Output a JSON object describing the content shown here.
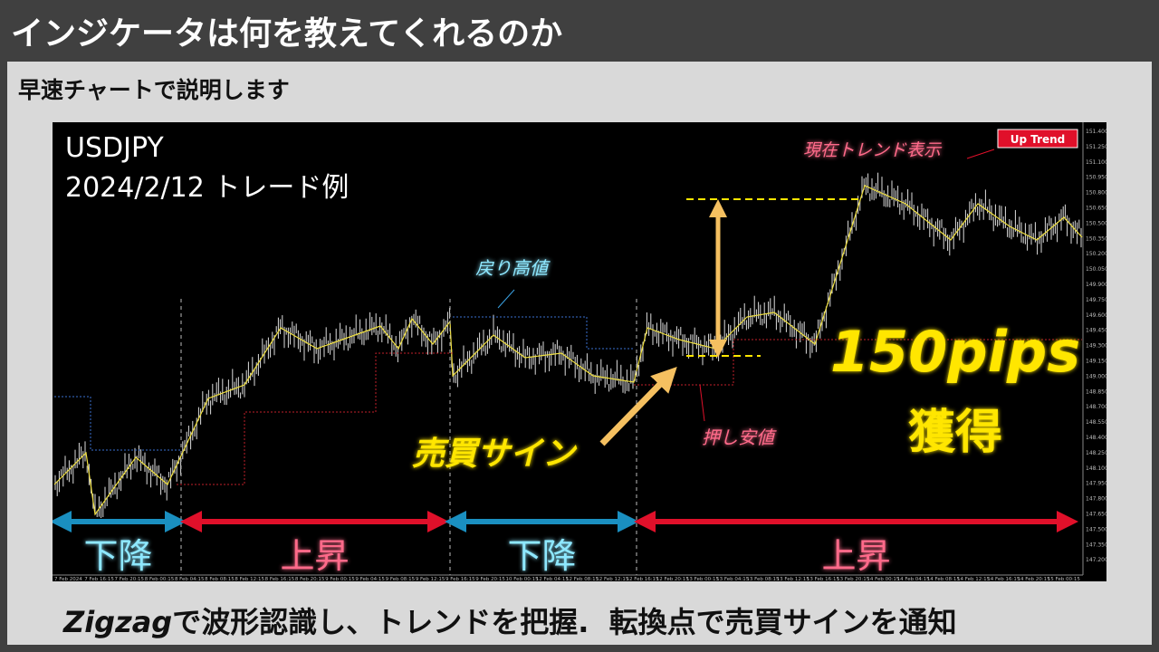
{
  "header": {
    "title": "インジケータは何を教えてくれるのか"
  },
  "subtitle": "早速チャートで説明します",
  "chart": {
    "symbol": "USDJPY",
    "trade_example": "2024/2/12 トレード例",
    "trend_badge": "Up Trend",
    "trend_badge_note": "現在トレンド表示",
    "pullback_high": "戻り高値",
    "pullback_low": "押し安値",
    "signal": "売買サイン",
    "gain_amount": "150pips",
    "gain_word": "獲得",
    "phases": [
      "下降",
      "上昇",
      "下降",
      "上昇"
    ],
    "price_ticks": [
      "151.400",
      "151.250",
      "151.100",
      "150.950",
      "150.800",
      "150.650",
      "150.500",
      "150.350",
      "150.200",
      "150.050",
      "149.900",
      "149.750",
      "149.600",
      "149.450",
      "149.300",
      "149.150",
      "149.000",
      "148.850",
      "148.700",
      "148.550",
      "148.400",
      "148.250",
      "148.100",
      "147.950",
      "147.800",
      "147.650",
      "147.500",
      "147.350",
      "147.200"
    ],
    "time_ticks": [
      "7 Feb 2024",
      "7 Feb 16:15",
      "7 Feb 20:15",
      "8 Feb 00:15",
      "8 Feb 04:15",
      "8 Feb 08:15",
      "8 Feb 12:15",
      "8 Feb 16:15",
      "8 Feb 20:15",
      "9 Feb 00:15",
      "9 Feb 04:15",
      "9 Feb 08:15",
      "9 Feb 12:15",
      "9 Feb 16:15",
      "9 Feb 20:15",
      "10 Feb 00:15",
      "12 Feb 04:15",
      "12 Feb 08:15",
      "12 Feb 12:15",
      "12 Feb 16:15",
      "12 Feb 20:15",
      "13 Feb 00:15",
      "13 Feb 04:15",
      "13 Feb 08:15",
      "13 Feb 12:15",
      "13 Feb 16:15",
      "13 Feb 20:15",
      "14 Feb 00:15",
      "14 Feb 04:15",
      "14 Feb 08:15",
      "14 Feb 12:15",
      "14 Feb 16:15",
      "14 Feb 20:15",
      "15 Feb 00:15"
    ]
  },
  "footer": {
    "lead": "Zigzag",
    "text": "で波形認識し、トレンドを把握.  転換点で売買サインを通知"
  }
}
